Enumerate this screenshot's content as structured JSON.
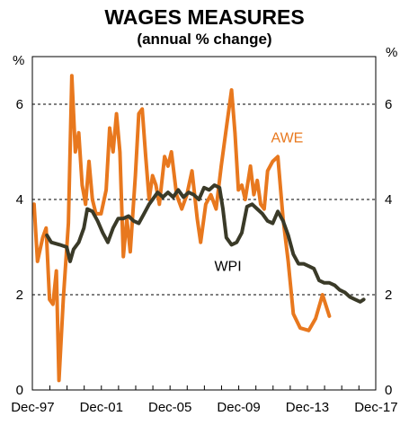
{
  "chart_data": {
    "type": "line",
    "title": "WAGES MEASURES",
    "subtitle": "(annual % change)",
    "left_unit": "%",
    "right_unit": "%",
    "xlim": [
      1997.9,
      2017.9
    ],
    "ylim": [
      0,
      7
    ],
    "y_ticks": [
      0,
      2,
      4,
      6
    ],
    "x_ticks": [
      {
        "label": "Dec-97",
        "x": 1997.92
      },
      {
        "label": "Dec-01",
        "x": 2001.92
      },
      {
        "label": "Dec-05",
        "x": 2005.92
      },
      {
        "label": "Dec-09",
        "x": 2009.92
      },
      {
        "label": "Dec-13",
        "x": 2013.92
      },
      {
        "label": "Dec-17",
        "x": 2017.92
      }
    ],
    "grid": "horizontal-dashed",
    "series": [
      {
        "name": "AWE",
        "color": "#e8781e",
        "label_pos": [
          2011.8,
          5.2
        ],
        "points": [
          [
            1998.0,
            3.9
          ],
          [
            1998.2,
            2.7
          ],
          [
            1998.5,
            3.2
          ],
          [
            1998.7,
            3.4
          ],
          [
            1998.9,
            1.9
          ],
          [
            1999.1,
            1.8
          ],
          [
            1999.3,
            2.5
          ],
          [
            1999.45,
            0.2
          ],
          [
            1999.7,
            1.9
          ],
          [
            2000.0,
            3.5
          ],
          [
            2000.2,
            6.6
          ],
          [
            2000.4,
            5.0
          ],
          [
            2000.6,
            5.4
          ],
          [
            2000.8,
            4.3
          ],
          [
            2001.0,
            3.9
          ],
          [
            2001.2,
            4.8
          ],
          [
            2001.4,
            4.0
          ],
          [
            2001.6,
            3.7
          ],
          [
            2001.9,
            3.7
          ],
          [
            2002.2,
            4.2
          ],
          [
            2002.4,
            5.5
          ],
          [
            2002.6,
            5.0
          ],
          [
            2002.8,
            5.8
          ],
          [
            2003.0,
            5.0
          ],
          [
            2003.2,
            2.8
          ],
          [
            2003.4,
            3.6
          ],
          [
            2003.6,
            2.9
          ],
          [
            2003.9,
            4.5
          ],
          [
            2004.1,
            5.8
          ],
          [
            2004.3,
            5.9
          ],
          [
            2004.5,
            4.9
          ],
          [
            2004.7,
            4.0
          ],
          [
            2004.9,
            4.5
          ],
          [
            2005.1,
            4.3
          ],
          [
            2005.3,
            3.9
          ],
          [
            2005.6,
            4.9
          ],
          [
            2005.8,
            4.7
          ],
          [
            2006.0,
            5.0
          ],
          [
            2006.3,
            4.1
          ],
          [
            2006.6,
            3.8
          ],
          [
            2006.9,
            4.1
          ],
          [
            2007.2,
            4.6
          ],
          [
            2007.5,
            3.6
          ],
          [
            2007.7,
            3.1
          ],
          [
            2008.0,
            3.9
          ],
          [
            2008.3,
            4.1
          ],
          [
            2008.6,
            3.8
          ],
          [
            2008.9,
            4.7
          ],
          [
            2009.2,
            5.5
          ],
          [
            2009.5,
            6.3
          ],
          [
            2009.7,
            5.4
          ],
          [
            2009.9,
            4.2
          ],
          [
            2010.1,
            4.3
          ],
          [
            2010.3,
            4.0
          ],
          [
            2010.6,
            4.7
          ],
          [
            2010.8,
            4.1
          ],
          [
            2011.0,
            4.4
          ],
          [
            2011.2,
            3.9
          ],
          [
            2011.4,
            3.8
          ],
          [
            2011.6,
            4.6
          ],
          [
            2011.9,
            4.8
          ],
          [
            2012.2,
            4.9
          ],
          [
            2012.5,
            3.6
          ],
          [
            2012.8,
            2.7
          ],
          [
            2013.1,
            1.6
          ],
          [
            2013.5,
            1.3
          ],
          [
            2014.0,
            1.25
          ],
          [
            2014.4,
            1.5
          ],
          [
            2014.8,
            2.0
          ],
          [
            2015.2,
            1.55
          ]
        ]
      },
      {
        "name": "WPI",
        "color": "#3a3a28",
        "label_pos": [
          2008.5,
          2.5
        ],
        "points": [
          [
            1998.75,
            3.25
          ],
          [
            1999.0,
            3.1
          ],
          [
            1999.5,
            3.05
          ],
          [
            1999.9,
            3.0
          ],
          [
            2000.1,
            2.7
          ],
          [
            2000.3,
            2.95
          ],
          [
            2000.6,
            3.1
          ],
          [
            2000.9,
            3.4
          ],
          [
            2001.1,
            3.8
          ],
          [
            2001.4,
            3.75
          ],
          [
            2001.7,
            3.55
          ],
          [
            2002.0,
            3.3
          ],
          [
            2002.3,
            3.1
          ],
          [
            2002.6,
            3.4
          ],
          [
            2002.9,
            3.6
          ],
          [
            2003.2,
            3.6
          ],
          [
            2003.5,
            3.65
          ],
          [
            2003.8,
            3.55
          ],
          [
            2004.1,
            3.5
          ],
          [
            2004.4,
            3.7
          ],
          [
            2004.7,
            3.9
          ],
          [
            2005.0,
            4.05
          ],
          [
            2005.2,
            4.15
          ],
          [
            2005.5,
            4.05
          ],
          [
            2005.8,
            4.15
          ],
          [
            2006.1,
            4.05
          ],
          [
            2006.4,
            4.2
          ],
          [
            2006.7,
            4.05
          ],
          [
            2007.0,
            4.15
          ],
          [
            2007.3,
            4.1
          ],
          [
            2007.6,
            4.0
          ],
          [
            2007.9,
            4.25
          ],
          [
            2008.2,
            4.2
          ],
          [
            2008.5,
            4.3
          ],
          [
            2008.8,
            4.25
          ],
          [
            2009.0,
            3.8
          ],
          [
            2009.2,
            3.2
          ],
          [
            2009.5,
            3.05
          ],
          [
            2009.8,
            3.1
          ],
          [
            2010.1,
            3.3
          ],
          [
            2010.4,
            3.85
          ],
          [
            2010.7,
            3.9
          ],
          [
            2011.0,
            3.8
          ],
          [
            2011.3,
            3.7
          ],
          [
            2011.6,
            3.55
          ],
          [
            2011.9,
            3.5
          ],
          [
            2012.2,
            3.75
          ],
          [
            2012.5,
            3.55
          ],
          [
            2012.8,
            3.25
          ],
          [
            2013.1,
            2.85
          ],
          [
            2013.4,
            2.65
          ],
          [
            2013.7,
            2.65
          ],
          [
            2014.0,
            2.6
          ],
          [
            2014.3,
            2.55
          ],
          [
            2014.6,
            2.3
          ],
          [
            2014.9,
            2.25
          ],
          [
            2015.2,
            2.25
          ],
          [
            2015.5,
            2.2
          ],
          [
            2015.8,
            2.1
          ],
          [
            2016.1,
            2.05
          ],
          [
            2016.4,
            1.95
          ],
          [
            2016.7,
            1.9
          ],
          [
            2017.0,
            1.85
          ],
          [
            2017.2,
            1.9
          ]
        ]
      }
    ]
  }
}
